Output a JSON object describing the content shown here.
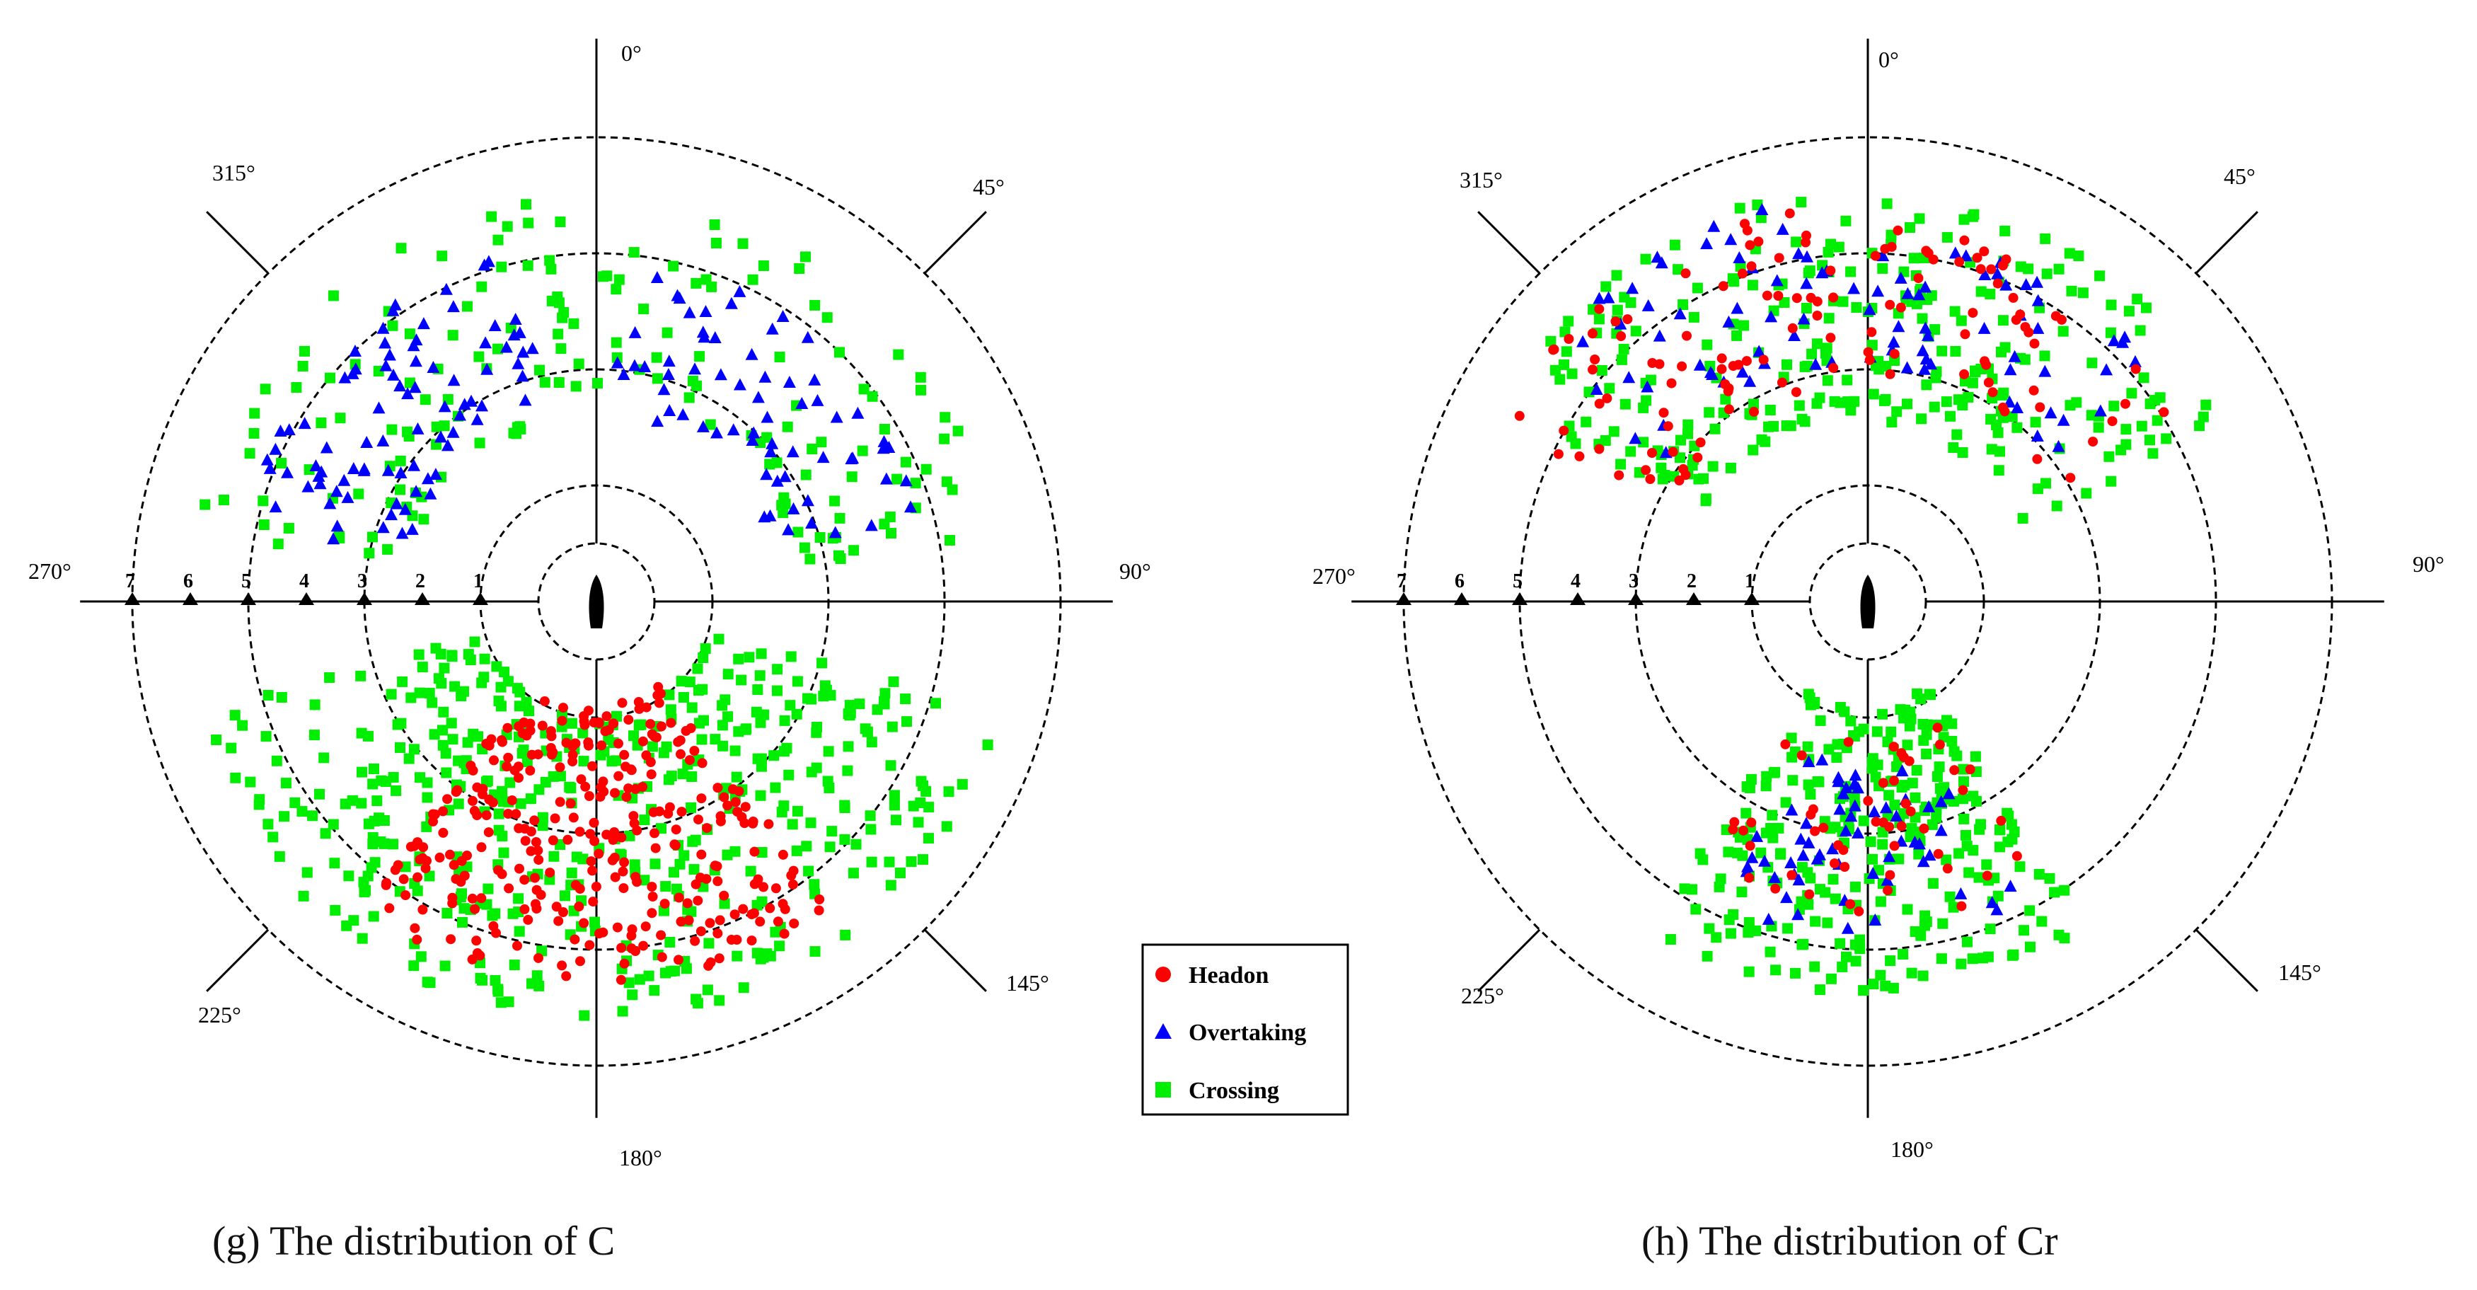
{
  "figure": {
    "legend": {
      "items": [
        {
          "label": "Headon",
          "marker": "circle",
          "color": "#ff0000"
        },
        {
          "label": "Overtaking",
          "marker": "triangle",
          "color": "#0000ff"
        },
        {
          "label": "Crossing",
          "marker": "square",
          "color": "#00ee00"
        }
      ]
    },
    "captions": {
      "g": "(g)  The distribution of C",
      "h": "(h)  The distribution of Cr"
    }
  },
  "chart_data": [
    {
      "type": "scatter",
      "coordinate_system": "polar",
      "title": "(g)  The distribution of C",
      "bearing_labels": [
        "0°",
        "45°",
        "90°",
        "145°",
        "180°",
        "225°",
        "270°",
        "315°"
      ],
      "ring_radii": [
        1,
        2,
        4,
        6,
        8
      ],
      "radial_marker_labels": [
        "1",
        "2",
        "3",
        "4",
        "5",
        "6",
        "7"
      ],
      "series": [
        {
          "name": "Headon",
          "marker": "circle",
          "color": "#ff0000",
          "approx_count": 320,
          "clusters": [
            {
              "bearing_center": 180,
              "bearing_spread": 38,
              "r_min": 1.8,
              "r_max": 6.6,
              "count": 320
            }
          ]
        },
        {
          "name": "Overtaking",
          "marker": "triangle",
          "color": "#0000ff",
          "approx_count": 150,
          "clusters": [
            {
              "bearing_center": 315,
              "bearing_spread": 32,
              "r_min": 3.4,
              "r_max": 6.2,
              "count": 85
            },
            {
              "bearing_center": 40,
              "bearing_spread": 35,
              "r_min": 3.2,
              "r_max": 6.0,
              "count": 65
            }
          ]
        },
        {
          "name": "Crossing",
          "marker": "square",
          "color": "#00ee00",
          "approx_count": 640,
          "clusters": [
            {
              "bearing_center": 180,
              "bearing_spread": 75,
              "r_min": 2.0,
              "r_max": 7.2,
              "count": 470
            },
            {
              "bearing_center": 318,
              "bearing_spread": 38,
              "r_min": 3.2,
              "r_max": 7.0,
              "count": 90
            },
            {
              "bearing_center": 40,
              "bearing_spread": 42,
              "r_min": 3.5,
              "r_max": 7.0,
              "count": 80
            }
          ]
        }
      ]
    },
    {
      "type": "scatter",
      "coordinate_system": "polar",
      "title": "(h)  The distribution of Cr",
      "bearing_labels": [
        "0°",
        "45°",
        "90°",
        "145°",
        "180°",
        "225°",
        "270°",
        "315°"
      ],
      "ring_radii": [
        1,
        2,
        4,
        6,
        8
      ],
      "radial_marker_labels": [
        "1",
        "2",
        "3",
        "4",
        "5",
        "6",
        "7"
      ],
      "series": [
        {
          "name": "Headon",
          "marker": "circle",
          "color": "#ff0000",
          "approx_count": 170,
          "clusters": [
            {
              "bearing_center": 325,
              "bearing_spread": 30,
              "r_min": 3.8,
              "r_max": 7.0,
              "count": 70
            },
            {
              "bearing_center": 30,
              "bearing_spread": 30,
              "r_min": 3.8,
              "r_max": 6.5,
              "count": 50
            },
            {
              "bearing_center": 180,
              "bearing_spread": 32,
              "r_min": 2.4,
              "r_max": 5.5,
              "count": 50
            }
          ]
        },
        {
          "name": "Overtaking",
          "marker": "triangle",
          "color": "#0000ff",
          "approx_count": 150,
          "clusters": [
            {
              "bearing_center": 330,
              "bearing_spread": 28,
              "r_min": 4.0,
              "r_max": 7.0,
              "count": 45
            },
            {
              "bearing_center": 28,
              "bearing_spread": 28,
              "r_min": 4.0,
              "r_max": 6.5,
              "count": 45
            },
            {
              "bearing_center": 180,
              "bearing_spread": 28,
              "r_min": 2.8,
              "r_max": 6.0,
              "count": 60
            }
          ]
        },
        {
          "name": "Crossing",
          "marker": "square",
          "color": "#00ee00",
          "approx_count": 560,
          "clusters": [
            {
              "bearing_center": 328,
              "bearing_spread": 30,
              "r_min": 3.2,
              "r_max": 7.2,
              "count": 140
            },
            {
              "bearing_center": 32,
              "bearing_spread": 32,
              "r_min": 3.0,
              "r_max": 7.0,
              "count": 140
            },
            {
              "bearing_center": 180,
              "bearing_spread": 35,
              "r_min": 1.8,
              "r_max": 6.8,
              "count": 280
            }
          ]
        }
      ]
    }
  ]
}
